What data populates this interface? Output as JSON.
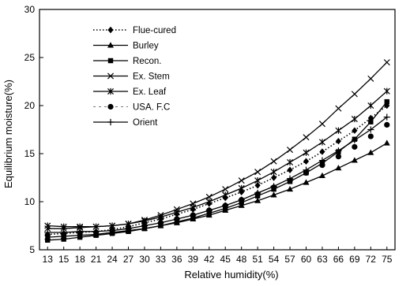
{
  "chart_data": {
    "type": "line",
    "title": "",
    "xlabel": "Relative humidity(%)",
    "ylabel": "Equilibrium moisture(%)",
    "categories": [
      "13",
      "15",
      "18",
      "21",
      "24",
      "27",
      "30",
      "33",
      "36",
      "39",
      "42",
      "45",
      "48",
      "51",
      "54",
      "57",
      "60",
      "63",
      "66",
      "69",
      "72",
      "75"
    ],
    "yticks": [
      "5",
      "10",
      "15",
      "20",
      "25",
      "30"
    ],
    "ylim": [
      5,
      30
    ],
    "grid": false,
    "legend_position": "top-left",
    "series": [
      {
        "name": "Flue-cured",
        "marker": "diamond",
        "line": "dotted",
        "color": "#000000",
        "values": [
          6.6,
          6.7,
          6.8,
          6.9,
          7.1,
          7.4,
          7.8,
          8.2,
          8.7,
          9.2,
          9.8,
          10.4,
          11.0,
          11.7,
          12.5,
          13.3,
          14.2,
          15.2,
          16.3,
          17.4,
          18.7,
          20.0
        ]
      },
      {
        "name": "Burley",
        "marker": "triangle",
        "line": "solid",
        "color": "#000000",
        "values": [
          6.3,
          6.4,
          6.5,
          6.6,
          6.8,
          7.0,
          7.2,
          7.5,
          7.8,
          8.2,
          8.6,
          9.1,
          9.6,
          10.1,
          10.7,
          11.3,
          12.0,
          12.7,
          13.5,
          14.3,
          15.1,
          16.1
        ]
      },
      {
        "name": "Recon.",
        "marker": "square",
        "line": "solid",
        "color": "#000000",
        "values": [
          6.0,
          6.1,
          6.3,
          6.5,
          6.7,
          6.9,
          7.2,
          7.5,
          7.9,
          8.3,
          8.8,
          9.3,
          9.9,
          10.6,
          11.3,
          12.1,
          13.0,
          14.0,
          15.2,
          16.5,
          18.3,
          20.4
        ]
      },
      {
        "name": "Ex. Stem",
        "marker": "x",
        "line": "solid",
        "color": "#000000",
        "values": [
          7.2,
          7.2,
          7.3,
          7.4,
          7.5,
          7.7,
          8.1,
          8.6,
          9.2,
          9.8,
          10.5,
          11.3,
          12.2,
          13.1,
          14.2,
          15.4,
          16.7,
          18.1,
          19.7,
          21.2,
          22.8,
          24.5
        ]
      },
      {
        "name": "Ex. Leaf",
        "marker": "asterisk",
        "line": "solid",
        "color": "#000000",
        "values": [
          7.5,
          7.4,
          7.4,
          7.4,
          7.5,
          7.7,
          8.0,
          8.4,
          8.9,
          9.4,
          10.0,
          10.7,
          11.4,
          12.2,
          13.1,
          14.1,
          15.1,
          16.2,
          17.4,
          18.6,
          20.0,
          21.5
        ]
      },
      {
        "name": "USA. F.C",
        "marker": "circle",
        "line": "none",
        "color": "#000000",
        "values": [
          6.5,
          6.6,
          6.7,
          6.8,
          7.0,
          7.2,
          7.5,
          7.8,
          8.2,
          8.6,
          9.1,
          9.6,
          10.2,
          10.8,
          11.5,
          12.2,
          13.0,
          13.8,
          14.7,
          15.7,
          16.8,
          18.0
        ]
      },
      {
        "name": "Orient",
        "marker": "plus",
        "line": "solid",
        "color": "#000000",
        "values": [
          6.8,
          6.8,
          6.9,
          6.9,
          7.0,
          7.2,
          7.5,
          7.8,
          8.2,
          8.6,
          9.1,
          9.6,
          10.2,
          10.9,
          11.6,
          12.4,
          13.3,
          14.3,
          15.3,
          16.4,
          17.5,
          18.8
        ]
      }
    ]
  }
}
